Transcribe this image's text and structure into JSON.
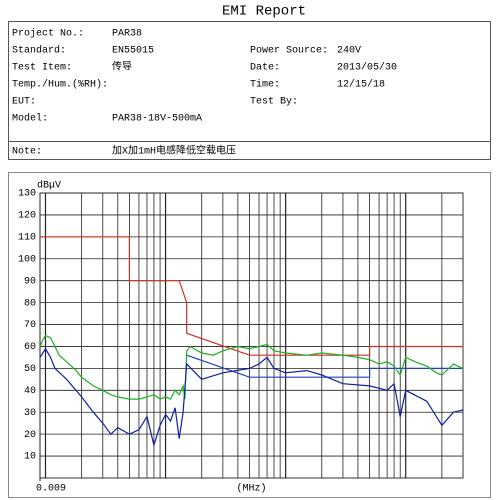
{
  "header": {
    "title": "EMI Report",
    "left": [
      {
        "label": "Project No.:",
        "value": "PAR38"
      },
      {
        "label": "Standard:",
        "value": "EN55015"
      },
      {
        "label": "Test Item:",
        "value": "传导"
      },
      {
        "label": "Temp./Hum.(%RH):"
      },
      {
        "label": "EUT:"
      },
      {
        "label": "Model:",
        "value": "PAR38-18V-500mA"
      }
    ],
    "right": [
      {
        "label": "Power Source:",
        "value": "240V"
      },
      {
        "label": "Date:",
        "value": "2013/05/30"
      },
      {
        "label": "Time:",
        "value": "12/15/18"
      },
      {
        "label": "Test By:"
      }
    ],
    "note": {
      "label": "Note:",
      "value": "加X加1mH电感降低空载电压"
    }
  },
  "chart_data": {
    "type": "line",
    "y_label": "dBμV",
    "x_label": "(MHz)",
    "xscale": "log",
    "grid": true,
    "xlim": [
      0.009,
      30
    ],
    "xticks": [
      0.009
    ],
    "ylim": [
      0,
      130
    ],
    "yticks": [
      10,
      20,
      30,
      40,
      50,
      60,
      70,
      80,
      90,
      100,
      110,
      120,
      130
    ],
    "series": [
      {
        "color": "#d03020",
        "x": [
          0.009,
          0.05,
          0.05,
          0.13,
          0.15,
          0.15,
          0.5,
          5,
          5,
          30
        ],
        "values": [
          110,
          110,
          90,
          90,
          80,
          66,
          56,
          56,
          60,
          60
        ]
      },
      {
        "color": "#2040c0",
        "x": [
          0.15,
          0.5,
          5,
          5,
          30
        ],
        "values": [
          56,
          46,
          46,
          50,
          50
        ]
      },
      {
        "color": "#20b020",
        "x": [
          0.009,
          0.0095,
          0.01,
          0.011,
          0.012,
          0.013,
          0.015,
          0.018,
          0.02,
          0.025,
          0.03,
          0.035,
          0.04,
          0.05,
          0.06,
          0.07,
          0.08,
          0.09,
          0.1,
          0.11,
          0.12,
          0.13,
          0.14,
          0.145,
          0.15,
          0.16,
          0.2,
          0.25,
          0.3,
          0.4,
          0.5,
          0.6,
          0.7,
          0.8,
          1,
          1.5,
          2,
          3,
          4,
          5,
          6,
          7,
          8,
          9,
          10,
          12,
          15,
          18,
          20,
          25,
          30
        ],
        "values": [
          60,
          63,
          65,
          64,
          60,
          56,
          53,
          49,
          46,
          42,
          40,
          38,
          37,
          36,
          36,
          37,
          38,
          36,
          37,
          36,
          40,
          38,
          42,
          36,
          58,
          60,
          57,
          56,
          58,
          60,
          59,
          60,
          61,
          58,
          57,
          56,
          57,
          56,
          55,
          54,
          52,
          53,
          51,
          47,
          55,
          53,
          51,
          48,
          47,
          52,
          50
        ]
      },
      {
        "color": "#1020a0",
        "x": [
          0.009,
          0.01,
          0.011,
          0.012,
          0.015,
          0.02,
          0.025,
          0.03,
          0.035,
          0.04,
          0.05,
          0.06,
          0.07,
          0.08,
          0.09,
          0.1,
          0.11,
          0.12,
          0.13,
          0.14,
          0.15,
          0.2,
          0.3,
          0.5,
          0.6,
          0.7,
          0.8,
          1,
          1.5,
          2,
          3,
          5,
          7,
          8,
          9,
          10,
          15,
          20,
          25,
          30
        ],
        "values": [
          55,
          59,
          55,
          50,
          45,
          37,
          30,
          25,
          20,
          23,
          20,
          22,
          28,
          15,
          24,
          29,
          26,
          32,
          18,
          30,
          52,
          45,
          48,
          50,
          52,
          55,
          50,
          48,
          49,
          47,
          43,
          42,
          40,
          43,
          28,
          40,
          35,
          24,
          30,
          31
        ]
      }
    ]
  }
}
